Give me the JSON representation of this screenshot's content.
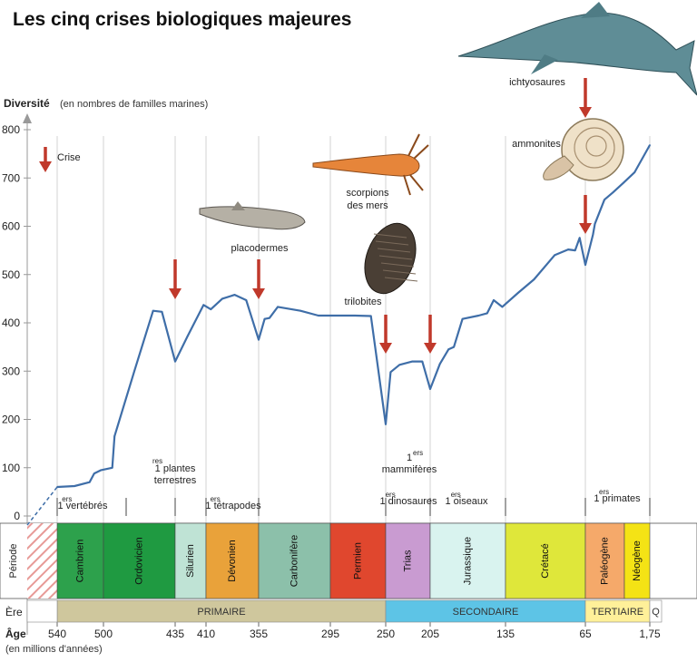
{
  "title": "Les cinq crises biologiques majeures",
  "chart_data": {
    "type": "line",
    "y_title": "Diversité",
    "y_title_note": "(en nombres de familles marines)",
    "yticks": [
      0,
      100,
      200,
      300,
      400,
      500,
      600,
      700,
      800
    ],
    "ylim": [
      0,
      800
    ],
    "x_title": "Âge",
    "x_title_note": "(en millions d'années)",
    "grid": "vertical lines at period boundaries",
    "line_color": "#3f6ea8",
    "crisis_color": "#c0392b",
    "legend": {
      "label": "Crise",
      "position": "top-left"
    },
    "age_ticks": [
      {
        "label": "540",
        "ma": 540
      },
      {
        "label": "500",
        "ma": 500
      },
      {
        "label": "435",
        "ma": 435
      },
      {
        "label": "410",
        "ma": 410
      },
      {
        "label": "355",
        "ma": 355
      },
      {
        "label": "295",
        "ma": 295
      },
      {
        "label": "250",
        "ma": 250
      },
      {
        "label": "205",
        "ma": 205
      },
      {
        "label": "135",
        "ma": 135
      },
      {
        "label": "65",
        "ma": 65
      },
      {
        "label": "1,75",
        "ma": 1.75
      }
    ],
    "series": [
      {
        "points": [
          [
            540,
            60
          ],
          [
            525,
            62
          ],
          [
            512,
            70
          ],
          [
            508,
            88
          ],
          [
            502,
            95
          ],
          [
            492,
            100
          ],
          [
            490,
            165
          ],
          [
            472,
            300
          ],
          [
            455,
            425
          ],
          [
            447,
            423
          ],
          [
            435,
            320
          ],
          [
            425,
            372
          ],
          [
            412,
            437
          ],
          [
            405,
            428
          ],
          [
            393,
            450
          ],
          [
            380,
            458
          ],
          [
            368,
            447
          ],
          [
            355,
            365
          ],
          [
            350,
            408
          ],
          [
            346,
            410
          ],
          [
            339,
            433
          ],
          [
            320,
            425
          ],
          [
            305,
            415
          ],
          [
            275,
            415
          ],
          [
            262,
            414
          ],
          [
            250,
            190
          ],
          [
            245,
            298
          ],
          [
            236,
            313
          ],
          [
            223,
            320
          ],
          [
            213,
            320
          ],
          [
            205,
            263
          ],
          [
            196,
            315
          ],
          [
            188,
            345
          ],
          [
            183,
            350
          ],
          [
            175,
            408
          ],
          [
            160,
            415
          ],
          [
            152,
            420
          ],
          [
            146,
            447
          ],
          [
            138,
            433
          ],
          [
            124,
            462
          ],
          [
            110,
            490
          ],
          [
            92,
            540
          ],
          [
            80,
            552
          ],
          [
            74,
            550
          ],
          [
            70,
            576
          ],
          [
            65,
            520
          ],
          [
            57,
            583
          ],
          [
            55,
            605
          ],
          [
            45,
            655
          ],
          [
            36,
            670
          ],
          [
            25,
            690
          ],
          [
            15,
            712
          ],
          [
            1.75,
            768
          ]
        ]
      }
    ],
    "crises_ma": [
      435,
      355,
      250,
      205,
      65
    ],
    "annotations": [
      {
        "sup": "ers",
        "text": "1 vertébrés"
      },
      {
        "sup": "res",
        "text": "1 plantes terrestres"
      },
      {
        "sup": "ers",
        "text": "1 tétrapodes"
      },
      {
        "sup": "ers",
        "text": "1 mammifères"
      },
      {
        "sup": "ers",
        "text": "1 dinosaures"
      },
      {
        "sup": "ers",
        "text": "1 oiseaux"
      },
      {
        "sup": "ers",
        "text": "1 primates"
      }
    ],
    "fauna_labels": [
      "placodermes",
      "scorpions des mers",
      "trilobites",
      "ammonites",
      "ichtyosaures"
    ],
    "periods": [
      {
        "name": "Cambrien",
        "from": 540,
        "to": 500,
        "color": "#2da14c"
      },
      {
        "name": "Ordovicien",
        "from": 500,
        "to": 435,
        "color": "#1f9a41"
      },
      {
        "name": "Silurien",
        "from": 435,
        "to": 410,
        "color": "#bfe3d5"
      },
      {
        "name": "Dévonien",
        "from": 410,
        "to": 355,
        "color": "#e9a23a"
      },
      {
        "name": "Carbonifère",
        "from": 355,
        "to": 295,
        "color": "#8cc0aa"
      },
      {
        "name": "Permien",
        "from": 295,
        "to": 250,
        "color": "#e0472e"
      },
      {
        "name": "Trias",
        "from": 250,
        "to": 205,
        "color": "#c99bd1"
      },
      {
        "name": "Jurassique",
        "from": 205,
        "to": 135,
        "color": "#d9f3ef"
      },
      {
        "name": "Crétacé",
        "from": 135,
        "to": 65,
        "color": "#dfe73a"
      },
      {
        "name": "Paléogène",
        "from": 65,
        "to": 24,
        "color": "#f5a96a"
      },
      {
        "name": "Néogène",
        "from": 24,
        "to": 1.75,
        "color": "#f4e315"
      }
    ],
    "period_axis_label": "Période",
    "eras": [
      {
        "name": "PRIMAIRE",
        "from": 540,
        "to": 250,
        "color": "#cfc79d"
      },
      {
        "name": "SECONDAIRE",
        "from": 250,
        "to": 65,
        "color": "#5dc4e6"
      },
      {
        "name": "TERTIAIRE",
        "from": 65,
        "to": 1.75,
        "color": "#fff099"
      },
      {
        "name": "Q",
        "from": 1.75,
        "to": 0,
        "color": "#ffffff"
      }
    ],
    "era_axis_label": "Ère"
  }
}
